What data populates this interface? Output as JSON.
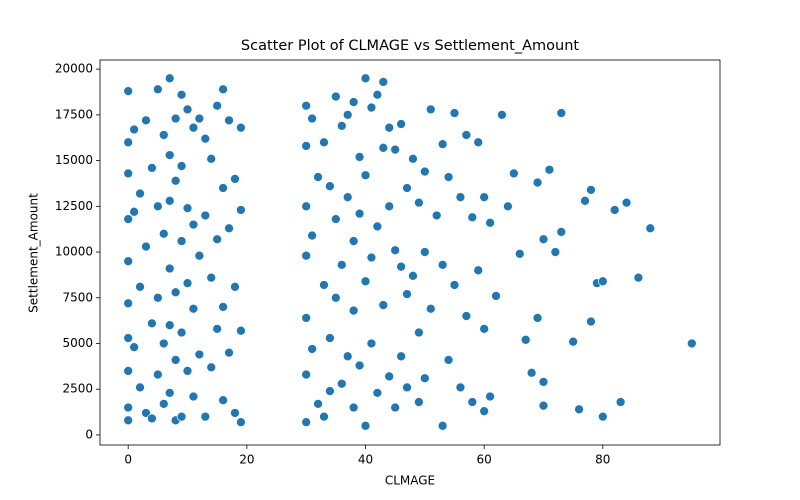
{
  "chart_data": {
    "type": "scatter",
    "title": "Scatter Plot of CLMAGE vs Settlement_Amount",
    "x_label": "CLMAGE",
    "y_label": "Settlement_Amount",
    "color": "#1f77b4",
    "xlim": [
      -4.75,
      99.75
    ],
    "ylim": [
      -550,
      20500
    ],
    "xticks": [
      0,
      20,
      40,
      60,
      80
    ],
    "yticks": [
      0,
      2500,
      5000,
      7500,
      10000,
      12500,
      15000,
      17500,
      20000
    ],
    "x": [
      0,
      0,
      0,
      0,
      0,
      0,
      0,
      0,
      0,
      0,
      1,
      1,
      1,
      2,
      2,
      2,
      3,
      3,
      3,
      4,
      4,
      4,
      5,
      5,
      5,
      5,
      6,
      6,
      6,
      6,
      7,
      7,
      7,
      7,
      7,
      7,
      8,
      8,
      8,
      8,
      8,
      9,
      9,
      9,
      9,
      9,
      10,
      10,
      10,
      10,
      11,
      11,
      11,
      11,
      12,
      12,
      12,
      13,
      13,
      13,
      14,
      14,
      14,
      15,
      15,
      15,
      16,
      16,
      16,
      16,
      17,
      17,
      17,
      18,
      18,
      18,
      19,
      19,
      19,
      19,
      30,
      30,
      30,
      30,
      30,
      30,
      30,
      31,
      31,
      31,
      32,
      32,
      33,
      33,
      33,
      34,
      34,
      34,
      35,
      35,
      35,
      36,
      36,
      36,
      37,
      37,
      37,
      38,
      38,
      38,
      38,
      39,
      39,
      39,
      40,
      40,
      40,
      40,
      41,
      41,
      41,
      42,
      42,
      42,
      43,
      43,
      43,
      44,
      44,
      44,
      45,
      45,
      45,
      46,
      46,
      46,
      47,
      47,
      47,
      48,
      48,
      49,
      49,
      49,
      50,
      50,
      50,
      51,
      51,
      52,
      53,
      53,
      53,
      54,
      54,
      55,
      55,
      56,
      56,
      57,
      57,
      58,
      58,
      59,
      59,
      60,
      60,
      60,
      61,
      61,
      62,
      63,
      64,
      65,
      66,
      67,
      68,
      69,
      69,
      70,
      70,
      71,
      72,
      73,
      73,
      75,
      76,
      77,
      78,
      78,
      79,
      80,
      80,
      82,
      83,
      84,
      86,
      88,
      95,
      70
    ],
    "y": [
      18800,
      14300,
      11800,
      9500,
      7200,
      5300,
      3500,
      1500,
      800,
      16000,
      16700,
      12200,
      4800,
      13200,
      8100,
      2600,
      17200,
      10300,
      1200,
      14600,
      6100,
      900,
      18900,
      12500,
      7500,
      3300,
      16400,
      11000,
      5000,
      1700,
      19500,
      15300,
      12800,
      9100,
      6000,
      2300,
      17300,
      13900,
      7800,
      4100,
      800,
      18600,
      14700,
      10600,
      5600,
      1000,
      17800,
      12400,
      8300,
      3500,
      16800,
      11500,
      6900,
      2100,
      17300,
      9800,
      4400,
      16200,
      12000,
      1000,
      15100,
      8600,
      3700,
      18000,
      10700,
      5800,
      18900,
      13500,
      7000,
      1900,
      17200,
      11300,
      4500,
      14000,
      8100,
      1200,
      16800,
      12300,
      5700,
      700,
      18000,
      15800,
      12500,
      9800,
      6400,
      3300,
      700,
      17300,
      10900,
      4700,
      14100,
      1700,
      16000,
      8200,
      1000,
      13600,
      5300,
      2400,
      18500,
      11800,
      7500,
      16900,
      9300,
      2800,
      17500,
      13000,
      4300,
      18200,
      10600,
      6800,
      1500,
      15200,
      12100,
      3800,
      19500,
      14200,
      8400,
      500,
      17900,
      9700,
      5000,
      18600,
      11400,
      2300,
      19300,
      15700,
      7100,
      16800,
      12500,
      3200,
      15600,
      10100,
      1500,
      17000,
      9200,
      4300,
      13500,
      7700,
      2600,
      15100,
      8700,
      12700,
      5600,
      1800,
      14400,
      10000,
      3100,
      17800,
      6900,
      12000,
      15900,
      9300,
      500,
      14100,
      4100,
      17600,
      8200,
      13000,
      2600,
      16400,
      6500,
      11900,
      1800,
      16000,
      9000,
      13000,
      5800,
      1300,
      11600,
      2100,
      7600,
      17500,
      12500,
      14300,
      9900,
      5200,
      3400,
      13800,
      6400,
      10700,
      1600,
      14500,
      10000,
      17600,
      11100,
      5100,
      1400,
      12800,
      13400,
      6200,
      8300,
      1000,
      8400,
      12300,
      1800,
      12700,
      8600,
      11300,
      5000,
      2900
    ]
  }
}
